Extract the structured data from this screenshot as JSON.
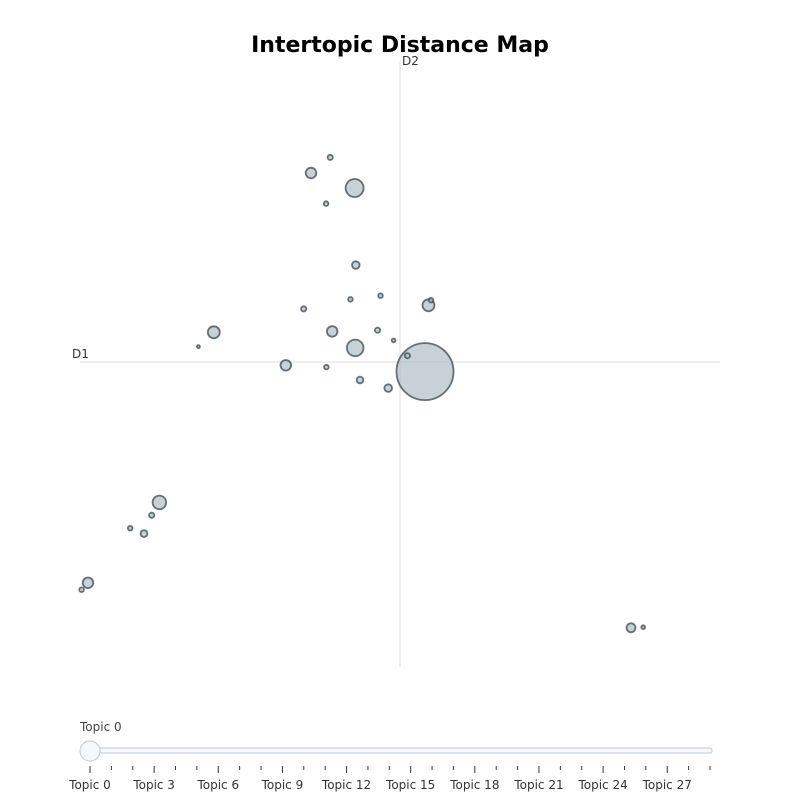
{
  "chart_data": {
    "type": "scatter",
    "title": "Intertopic Distance Map",
    "xlabel": "D1",
    "ylabel": "D2",
    "xlim": [
      -10,
      10
    ],
    "ylim": [
      -10,
      10
    ],
    "grid": false,
    "points": [
      {
        "x": 0.78,
        "y": -0.32,
        "size": 38
      },
      {
        "x": -1.42,
        "y": 5.8,
        "size": 12
      },
      {
        "x": -1.4,
        "y": 0.47,
        "size": 11
      },
      {
        "x": -5.82,
        "y": 0.99,
        "size": 8
      },
      {
        "x": -7.52,
        "y": -4.68,
        "size": 9
      },
      {
        "x": 7.22,
        "y": -8.86,
        "size": 6
      },
      {
        "x": -2.78,
        "y": 6.3,
        "size": 7
      },
      {
        "x": 0.89,
        "y": 1.89,
        "size": 8
      },
      {
        "x": -3.57,
        "y": -0.11,
        "size": 7
      },
      {
        "x": -9.75,
        "y": -7.36,
        "size": 7
      },
      {
        "x": -2.12,
        "y": 1.02,
        "size": 7
      },
      {
        "x": -1.38,
        "y": 3.23,
        "size": 5
      },
      {
        "x": -0.37,
        "y": -0.87,
        "size": 5
      },
      {
        "x": -8.0,
        "y": -5.72,
        "size": 4.5
      },
      {
        "x": -1.25,
        "y": -0.6,
        "size": 4.5
      },
      {
        "x": -2.18,
        "y": 6.82,
        "size": 3.5
      },
      {
        "x": -3.01,
        "y": 1.77,
        "size": 3.5
      },
      {
        "x": 0.23,
        "y": 0.21,
        "size": 3.5
      },
      {
        "x": -0.7,
        "y": 1.06,
        "size": 3.5
      },
      {
        "x": -7.76,
        "y": -5.11,
        "size": 3.5
      },
      {
        "x": -2.31,
        "y": 5.28,
        "size": 3
      },
      {
        "x": -1.55,
        "y": 2.09,
        "size": 3
      },
      {
        "x": -0.61,
        "y": 2.21,
        "size": 3
      },
      {
        "x": 0.97,
        "y": 2.06,
        "size": 3
      },
      {
        "x": -2.3,
        "y": -0.17,
        "size": 3
      },
      {
        "x": -8.43,
        "y": -5.54,
        "size": 3
      },
      {
        "x": -9.95,
        "y": -7.59,
        "size": 3
      },
      {
        "x": 7.6,
        "y": -8.84,
        "size": 2.5
      },
      {
        "x": -0.2,
        "y": 0.72,
        "size": 2.5
      },
      {
        "x": -6.3,
        "y": 0.51,
        "size": 2
      }
    ],
    "slider": {
      "current_label": "Topic 0",
      "value": 0,
      "min": 0,
      "max": 29,
      "tick_labels": [
        "Topic 0",
        "Topic 3",
        "Topic 6",
        "Topic 9",
        "Topic 12",
        "Topic 15",
        "Topic 18",
        "Topic 21",
        "Topic 24",
        "Topic 27"
      ],
      "tick_label_values": [
        0,
        3,
        6,
        9,
        12,
        15,
        18,
        21,
        24,
        27
      ]
    },
    "colors": {
      "bubble_fill": "#b0bec5",
      "bubble_stroke": "#37474f",
      "axis_line": "#dddddd",
      "slider_track": "#bec8d9",
      "tick": "#333333"
    }
  }
}
